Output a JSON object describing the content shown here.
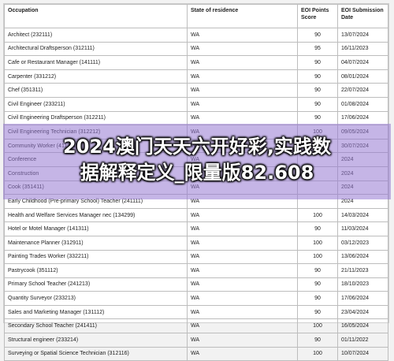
{
  "table": {
    "headers": {
      "occupation": "Occupation",
      "state": "State of residence",
      "score": "EOI Points Score",
      "date": "EOI Submission Date"
    },
    "rows": [
      {
        "occupation": "Architect (232111)",
        "state": "WA",
        "score": "90",
        "date": "13/07/2024"
      },
      {
        "occupation": "Architectural Draftsperson (312111)",
        "state": "WA",
        "score": "95",
        "date": "16/11/2023"
      },
      {
        "occupation": "Cafe or Restaurant Manager (141111)",
        "state": "WA",
        "score": "90",
        "date": "04/07/2024"
      },
      {
        "occupation": "Carpenter (331212)",
        "state": "WA",
        "score": "90",
        "date": "08/01/2024"
      },
      {
        "occupation": "Chef (351311)",
        "state": "WA",
        "score": "90",
        "date": "22/07/2024"
      },
      {
        "occupation": "Civil Engineer (233211)",
        "state": "WA",
        "score": "90",
        "date": "01/08/2024"
      },
      {
        "occupation": "Civil Engineering Draftsperson (312211)",
        "state": "WA",
        "score": "90",
        "date": "17/06/2024"
      },
      {
        "occupation": "Civil Engineering Technician (312212)",
        "state": "WA",
        "score": "100",
        "date": "09/05/2024"
      },
      {
        "occupation": "Community Worker (411711)",
        "state": "WA",
        "score": "90",
        "date": "30/07/2024"
      },
      {
        "occupation": "Conference",
        "state": "WA",
        "score": "",
        "date": "2024"
      },
      {
        "occupation": "Construction",
        "state": "WA",
        "score": "",
        "date": "2024"
      },
      {
        "occupation": "Cook (351411)",
        "state": "WA",
        "score": "",
        "date": "2024"
      },
      {
        "occupation": "Early Childhood (Pre-primary School) Teacher (241111)",
        "state": "WA",
        "score": "",
        "date": "2024"
      },
      {
        "occupation": "Health and Welfare Services Manager nec (134299)",
        "state": "WA",
        "score": "100",
        "date": "14/03/2024"
      },
      {
        "occupation": "Hotel or Motel Manager (141311)",
        "state": "WA",
        "score": "90",
        "date": "11/03/2024"
      },
      {
        "occupation": "Maintenance Planner (312911)",
        "state": "WA",
        "score": "100",
        "date": "03/12/2023"
      },
      {
        "occupation": "Painting Trades Worker (332211)",
        "state": "WA",
        "score": "100",
        "date": "13/06/2024"
      },
      {
        "occupation": "Pastrycook (351112)",
        "state": "WA",
        "score": "90",
        "date": "21/11/2023"
      },
      {
        "occupation": "Primary School Teacher (241213)",
        "state": "WA",
        "score": "90",
        "date": "18/10/2023"
      },
      {
        "occupation": "Quantity Surveyor (233213)",
        "state": "WA",
        "score": "90",
        "date": "17/06/2024"
      },
      {
        "occupation": "Sales and Marketing Manager (131112)",
        "state": "WA",
        "score": "90",
        "date": "23/04/2024"
      },
      {
        "occupation": "Secondary School Teacher (241411)",
        "state": "WA",
        "score": "100",
        "date": "16/05/2024"
      },
      {
        "occupation": "Structural engineer (233214)",
        "state": "WA",
        "score": "90",
        "date": "01/11/2022"
      },
      {
        "occupation": "Surveying or Spatial Science Technician (312116)",
        "state": "WA",
        "score": "100",
        "date": "10/07/2024"
      }
    ]
  },
  "overlay": {
    "line1": "2024澳门天天六开好彩,实践数",
    "line2": "据解释定义_限量版82.608"
  },
  "colors": {
    "band": "#9678d2",
    "overlay_text": "#ffffff"
  }
}
